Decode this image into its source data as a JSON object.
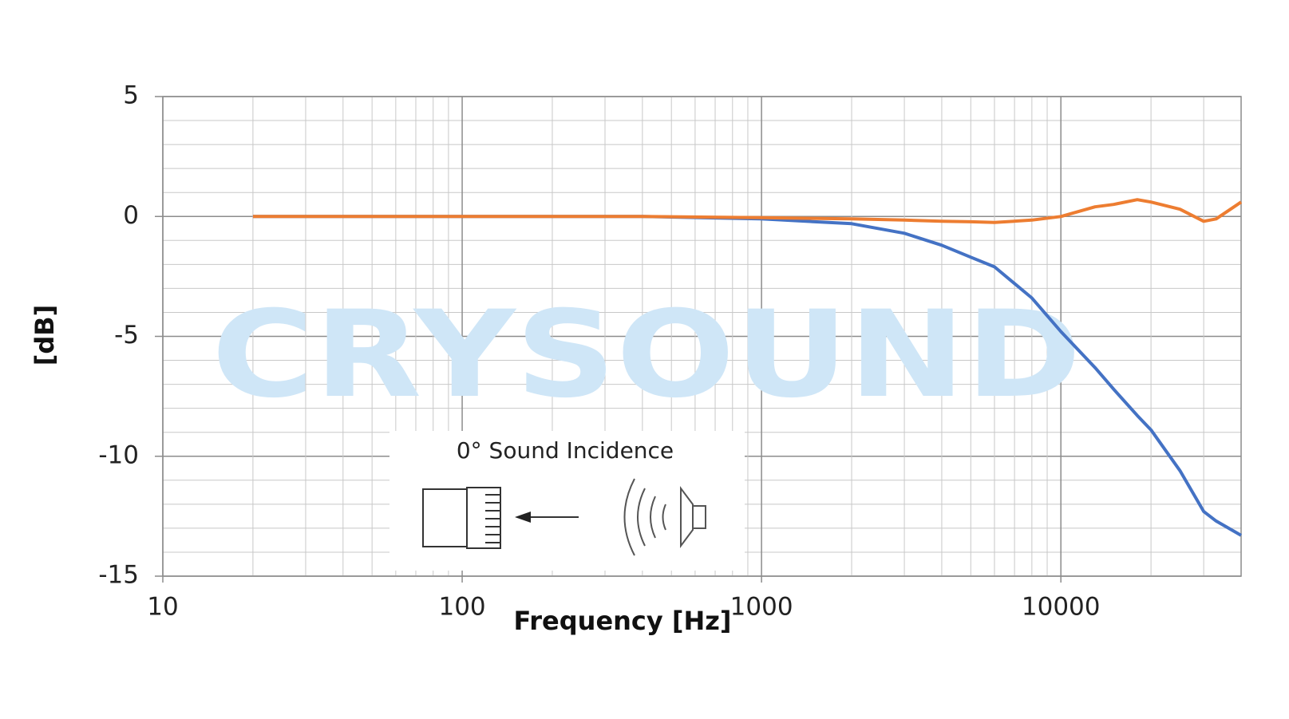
{
  "chart_data": {
    "type": "line",
    "title_x": "Frequency [Hz]",
    "title_y": "[dB]",
    "watermark": "CRYSOUND",
    "inset_title": "0° Sound Incidence",
    "xscale": "log",
    "x": [
      20,
      100,
      400,
      1000,
      2000,
      3000,
      4000,
      5000,
      6000,
      8000,
      10000,
      13000,
      15000,
      18000,
      20000,
      25000,
      30000,
      33000,
      40000
    ],
    "series": [
      {
        "color": "#4472c4",
        "values": [
          0,
          0,
          0,
          -0.1,
          -0.3,
          -0.7,
          -1.2,
          -1.7,
          -2.1,
          -3.4,
          -4.8,
          -6.3,
          -7.2,
          -8.3,
          -8.9,
          -10.6,
          -12.3,
          -12.7,
          -13.3
        ]
      },
      {
        "color": "#ed7d31",
        "values": [
          0,
          0,
          0,
          -0.05,
          -0.1,
          -0.15,
          -0.2,
          -0.22,
          -0.25,
          -0.15,
          0,
          0.4,
          0.5,
          0.7,
          0.6,
          0.3,
          -0.2,
          -0.1,
          0.6
        ]
      }
    ],
    "xlim": [
      10,
      40000
    ],
    "xticks": [
      10,
      100,
      1000,
      10000
    ],
    "ylim": [
      -15,
      5
    ],
    "yticks": [
      -15,
      -10,
      -5,
      0,
      5
    ],
    "grid": true
  }
}
